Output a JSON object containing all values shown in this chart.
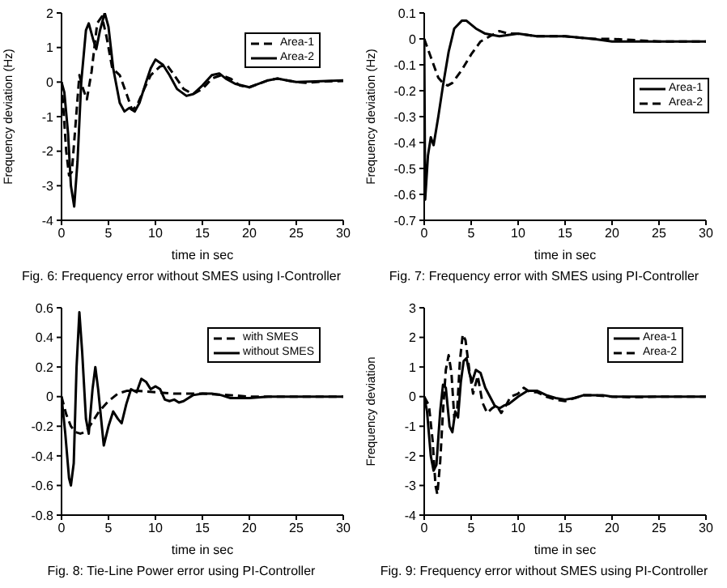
{
  "chart_data": [
    {
      "type": "line",
      "title": "Fig. 6: Frequency error without SMES using I-Controller",
      "xlabel": "time in sec",
      "ylabel": "Frequency deviation (Hz)",
      "xlim": [
        0,
        30
      ],
      "xticks": [
        0,
        5,
        10,
        15,
        20,
        25,
        30
      ],
      "ylim": [
        -4,
        2
      ],
      "yticks": [
        -4,
        -3,
        -2,
        -1,
        0,
        1,
        2
      ],
      "legend": "top right",
      "grid": false,
      "marker": "none",
      "series": [
        {
          "name": "Area-1",
          "color": "#000000",
          "line_style": "dashed",
          "x": [
            0,
            0.5,
            0.8,
            1.1,
            1.5,
            1.9,
            2.3,
            2.7,
            3.2,
            3.8,
            4.3,
            4.8,
            5.4,
            6.2,
            7,
            7.5,
            8,
            8.8,
            9.5,
            10.5,
            11.2,
            12,
            13,
            14,
            15,
            16,
            17,
            18,
            19,
            20,
            21,
            22,
            23,
            24,
            25,
            26,
            28,
            30
          ],
          "values": [
            0,
            -2,
            -2.7,
            -2.6,
            -1.2,
            0.2,
            -0.2,
            -0.5,
            0.3,
            1.7,
            1.9,
            1.3,
            0.4,
            0.2,
            -0.4,
            -0.8,
            -0.7,
            -0.2,
            0.2,
            0.45,
            0.5,
            0.2,
            -0.2,
            -0.35,
            -0.2,
            0.1,
            0.2,
            0.1,
            -0.1,
            -0.15,
            -0.05,
            0.05,
            0.1,
            0.05,
            0,
            -0.02,
            0.02,
            0.03
          ]
        },
        {
          "name": "Area-2",
          "color": "#000000",
          "line_style": "solid",
          "x": [
            0,
            0.3,
            0.7,
            1,
            1.35,
            1.7,
            2.1,
            2.6,
            2.9,
            3.4,
            3.7,
            4.1,
            4.6,
            5,
            5.5,
            6.2,
            6.7,
            7.2,
            7.8,
            8.3,
            9,
            9.5,
            10,
            10.8,
            11.5,
            12.3,
            13.3,
            14,
            15,
            16,
            16.8,
            17.5,
            18.5,
            20,
            21,
            22,
            23,
            24,
            25,
            27,
            30
          ],
          "values": [
            0,
            -0.3,
            -1.5,
            -3,
            -3.6,
            -2.3,
            0,
            1.5,
            1.7,
            1.2,
            0.95,
            1.5,
            2,
            1.6,
            0.4,
            -0.6,
            -0.85,
            -0.75,
            -0.85,
            -0.6,
            0,
            0.4,
            0.65,
            0.5,
            0.2,
            -0.2,
            -0.4,
            -0.35,
            -0.1,
            0.2,
            0.25,
            0.1,
            -0.05,
            -0.15,
            -0.05,
            0.05,
            0.1,
            0.05,
            0,
            0.02,
            0.05
          ]
        }
      ]
    },
    {
      "type": "line",
      "title": "Fig. 7: Frequency error with SMES using PI-Controller",
      "xlabel": "time in sec",
      "ylabel": "Frequency deviation (Hz)",
      "xlim": [
        0,
        30
      ],
      "xticks": [
        0,
        5,
        10,
        15,
        20,
        25,
        30
      ],
      "ylim": [
        -0.7,
        0.1
      ],
      "yticks": [
        -0.7,
        -0.6,
        -0.5,
        -0.4,
        -0.3,
        -0.2,
        -0.1,
        0,
        0.1
      ],
      "legend": "right",
      "grid": false,
      "marker": "none",
      "series": [
        {
          "name": "Area-1",
          "color": "#000000",
          "line_style": "solid",
          "x": [
            0,
            0.1,
            0.4,
            0.7,
            1,
            1.5,
            2,
            2.6,
            3.2,
            4,
            4.5,
            5.5,
            6.5,
            8,
            10,
            12,
            15,
            18,
            20,
            25,
            30
          ],
          "values": [
            0,
            -0.62,
            -0.45,
            -0.38,
            -0.41,
            -0.3,
            -0.18,
            -0.05,
            0.04,
            0.07,
            0.07,
            0.04,
            0.02,
            0.01,
            0.02,
            0.01,
            0.01,
            0,
            -0.01,
            -0.01,
            -0.01
          ]
        },
        {
          "name": "Area-2",
          "color": "#000000",
          "line_style": "dashed",
          "x": [
            0,
            0.5,
            1,
            1.5,
            2,
            2.5,
            3,
            4,
            5,
            6,
            7,
            8,
            9,
            10,
            12,
            15,
            18,
            20,
            25,
            30
          ],
          "values": [
            0,
            -0.05,
            -0.1,
            -0.15,
            -0.17,
            -0.18,
            -0.17,
            -0.12,
            -0.06,
            -0.01,
            0.01,
            0.03,
            0.02,
            0.02,
            0.01,
            0.01,
            0,
            0,
            -0.01,
            -0.01
          ]
        }
      ]
    },
    {
      "type": "line",
      "title": "Fig. 8: Tie-Line Power error using PI-Controller",
      "xlabel": "time in sec",
      "xlim": [
        0,
        30
      ],
      "xticks": [
        0,
        5,
        10,
        15,
        20,
        25,
        30
      ],
      "ylim": [
        -0.8,
        0.6
      ],
      "yticks": [
        -0.8,
        -0.6,
        -0.4,
        -0.2,
        0,
        0.2,
        0.4,
        0.6
      ],
      "legend": "top right",
      "grid": false,
      "marker": "none",
      "series": [
        {
          "name": "with SMES",
          "color": "#000000",
          "line_style": "dashed",
          "x": [
            0,
            0.5,
            1,
            1.5,
            2,
            2.5,
            3,
            3.5,
            4,
            5,
            6,
            7,
            8,
            10,
            12,
            15,
            18,
            20,
            25,
            30
          ],
          "values": [
            0,
            -0.12,
            -0.2,
            -0.24,
            -0.25,
            -0.24,
            -0.2,
            -0.15,
            -0.1,
            -0.03,
            0.02,
            0.04,
            0.04,
            0.03,
            0.02,
            0.02,
            0.01,
            0,
            0,
            0
          ]
        },
        {
          "name": "without SMES",
          "color": "#000000",
          "line_style": "solid",
          "x": [
            0,
            0.4,
            0.8,
            1,
            1.3,
            1.6,
            1.9,
            2.2,
            2.6,
            2.9,
            3.3,
            3.6,
            3.9,
            4.5,
            5,
            5.5,
            6,
            6.4,
            6.9,
            7.4,
            8,
            8.5,
            9,
            9.5,
            10,
            10.5,
            11,
            11.5,
            12,
            12.5,
            13,
            14,
            15,
            16,
            17,
            18,
            19,
            20,
            22,
            25,
            30
          ],
          "values": [
            0,
            -0.25,
            -0.55,
            -0.6,
            -0.45,
            0.2,
            0.57,
            0.3,
            -0.15,
            -0.25,
            0.05,
            0.2,
            0.05,
            -0.33,
            -0.2,
            -0.1,
            -0.15,
            -0.18,
            -0.05,
            0.05,
            0.03,
            0.12,
            0.1,
            0.05,
            0.07,
            0.05,
            -0.02,
            -0.03,
            -0.02,
            -0.04,
            -0.03,
            0.01,
            0.02,
            0.02,
            0.01,
            -0.01,
            -0.01,
            -0.01,
            0,
            0,
            0
          ]
        }
      ]
    },
    {
      "type": "line",
      "title": "Fig. 9: Frequency error without SMES using PI-Controller",
      "xlabel": "time in sec",
      "ylabel": "Frequency deviation",
      "xlim": [
        0,
        30
      ],
      "xticks": [
        0,
        5,
        10,
        15,
        20,
        25,
        30
      ],
      "ylim": [
        -4,
        3
      ],
      "yticks": [
        -4,
        -3,
        -2,
        -1,
        0,
        1,
        2,
        3
      ],
      "legend": "top right",
      "grid": false,
      "marker": "none",
      "series": [
        {
          "name": "Area-1",
          "color": "#000000",
          "line_style": "solid",
          "x": [
            0,
            0.3,
            0.7,
            1,
            1.3,
            1.7,
            2,
            2.3,
            2.7,
            3,
            3.3,
            3.6,
            3.9,
            4.2,
            4.5,
            4.8,
            5.1,
            5.5,
            6,
            6.5,
            7,
            7.5,
            8,
            8.5,
            9,
            10,
            11,
            12,
            13,
            14,
            15,
            16,
            17,
            18,
            19,
            20,
            22,
            25,
            30
          ],
          "values": [
            0,
            -0.5,
            -2,
            -2.5,
            -2.3,
            -0.5,
            0.4,
            0.3,
            -1,
            -1.2,
            -0.5,
            -0.7,
            0.5,
            1.2,
            1.3,
            0.8,
            0.5,
            0.9,
            0.8,
            0.3,
            0,
            -0.3,
            -0.4,
            -0.3,
            -0.25,
            0,
            0.2,
            0.2,
            0.05,
            -0.05,
            -0.1,
            -0.05,
            0.05,
            0.05,
            0.05,
            0,
            0,
            0,
            0
          ]
        },
        {
          "name": "Area-2",
          "color": "#000000",
          "line_style": "dashed",
          "x": [
            0,
            0.5,
            0.9,
            1.2,
            1.4,
            1.7,
            2,
            2.3,
            2.6,
            2.9,
            3.2,
            3.5,
            3.8,
            4.1,
            4.4,
            4.8,
            5.2,
            5.7,
            6.2,
            6.7,
            7.2,
            7.7,
            8.2,
            8.7,
            9.2,
            10,
            10.6,
            11.3,
            12,
            13,
            14,
            15,
            16,
            17,
            18,
            20,
            22,
            25,
            30
          ],
          "values": [
            0,
            -0.3,
            -1.5,
            -3,
            -3.3,
            -2.2,
            -0.5,
            0.9,
            1.4,
            0.8,
            -0.7,
            -0.5,
            1.2,
            2.1,
            1.9,
            0.9,
            0.1,
            0.7,
            -0.2,
            -0.55,
            -0.4,
            -0.3,
            -0.55,
            -0.3,
            0,
            0.1,
            0.3,
            0.15,
            0.15,
            0,
            -0.1,
            -0.15,
            -0.05,
            0.05,
            0.05,
            0,
            -0.02,
            0,
            0
          ]
        }
      ]
    }
  ]
}
